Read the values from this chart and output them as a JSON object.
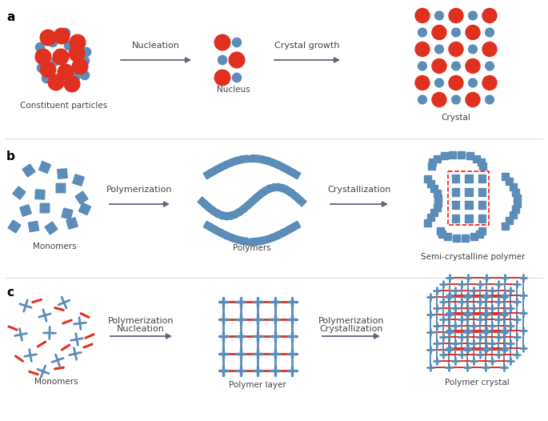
{
  "bg_color": "#ffffff",
  "red_color": "#e03020",
  "blue_color": "#5b8db8",
  "dark_gray": "#444444",
  "arrow_color": "#606878",
  "label_a": "a",
  "label_b": "b",
  "label_c": "c",
  "text_constituent": "Constituent particles",
  "text_nucleus": "Nucleus",
  "text_crystal": "Crystal",
  "text_nucleation": "Nucleation",
  "text_crystal_growth": "Crystal growth",
  "text_monomers_b": "Monomers",
  "text_polymers": "Polymers",
  "text_semi": "Semi-crystalline polymer",
  "text_polymerization_b": "Polymerization",
  "text_crystallization": "Crystallization",
  "text_monomers_c": "Monomers",
  "text_polymer_layer": "Polymer layer",
  "text_polymer_crystal": "Polymer crystal",
  "text_polymerization_c1": "Polymerization",
  "text_nucleation_c": "Nucleation",
  "text_polymerization_c2": "Polymerization",
  "text_crystallization_c": "Crystallization"
}
